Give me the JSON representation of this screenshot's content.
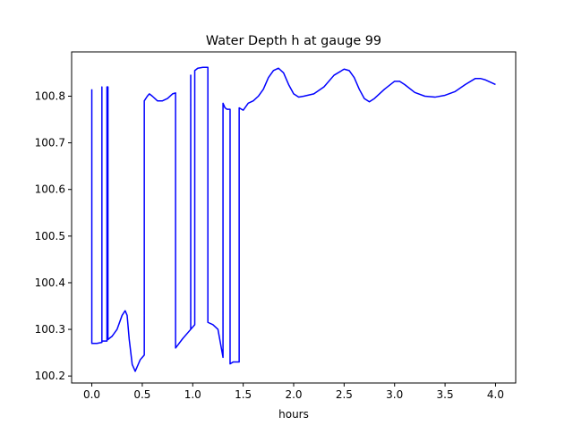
{
  "chart_data": {
    "type": "line",
    "title": "Water Depth h at gauge 99",
    "xlabel": "hours",
    "ylabel": "",
    "xlim": [
      -0.2,
      4.2
    ],
    "ylim": [
      100.185,
      100.895
    ],
    "xticks": [
      0.0,
      0.5,
      1.0,
      1.5,
      2.0,
      2.5,
      3.0,
      3.5,
      4.0
    ],
    "xtick_labels": [
      "0.0",
      "0.5",
      "1.0",
      "1.5",
      "2.0",
      "2.5",
      "3.0",
      "3.5",
      "4.0"
    ],
    "yticks": [
      100.2,
      100.3,
      100.4,
      100.5,
      100.6,
      100.7,
      100.8
    ],
    "ytick_labels": [
      "100.2",
      "100.3",
      "100.4",
      "100.5",
      "100.6",
      "100.7",
      "100.8"
    ],
    "grid": false,
    "legend": "none",
    "series": [
      {
        "color": "#0000ff",
        "x": [
          0.0,
          0.0,
          0.05,
          0.1,
          0.1,
          0.1,
          0.15,
          0.15,
          0.16,
          0.16,
          0.17,
          0.2,
          0.25,
          0.3,
          0.33,
          0.35,
          0.37,
          0.4,
          0.43,
          0.45,
          0.48,
          0.5,
          0.52,
          0.52,
          0.55,
          0.57,
          0.6,
          0.65,
          0.7,
          0.75,
          0.8,
          0.83,
          0.83,
          0.9,
          0.98,
          0.98,
          0.98,
          1.0,
          1.02,
          1.02,
          1.05,
          1.1,
          1.15,
          1.15,
          1.2,
          1.25,
          1.3,
          1.3,
          1.32,
          1.34,
          1.37,
          1.37,
          1.4,
          1.45,
          1.46,
          1.46,
          1.5,
          1.55,
          1.6,
          1.65,
          1.7,
          1.75,
          1.8,
          1.85,
          1.9,
          1.95,
          2.0,
          2.05,
          2.1,
          2.2,
          2.3,
          2.4,
          2.5,
          2.55,
          2.6,
          2.65,
          2.7,
          2.75,
          2.8,
          2.9,
          3.0,
          3.05,
          3.1,
          3.2,
          3.3,
          3.4,
          3.5,
          3.6,
          3.7,
          3.8,
          3.85,
          3.9,
          4.0
        ],
        "y": [
          100.815,
          100.27,
          100.27,
          100.272,
          100.82,
          100.275,
          100.275,
          100.82,
          100.82,
          100.278,
          100.28,
          100.285,
          100.3,
          100.33,
          100.34,
          100.33,
          100.28,
          100.225,
          100.21,
          100.22,
          100.235,
          100.24,
          100.245,
          100.79,
          100.8,
          100.805,
          100.8,
          100.79,
          100.79,
          100.795,
          100.805,
          100.807,
          100.26,
          100.28,
          100.3,
          100.845,
          100.3,
          100.305,
          100.31,
          100.855,
          100.86,
          100.862,
          100.862,
          100.315,
          100.31,
          100.3,
          100.24,
          100.785,
          100.775,
          100.772,
          100.772,
          100.226,
          100.23,
          100.23,
          100.23,
          100.775,
          100.77,
          100.785,
          100.79,
          100.8,
          100.815,
          100.84,
          100.855,
          100.86,
          100.85,
          100.825,
          100.805,
          100.798,
          100.8,
          100.805,
          100.82,
          100.845,
          100.858,
          100.855,
          100.84,
          100.815,
          100.795,
          100.788,
          100.795,
          100.815,
          100.832,
          100.832,
          100.825,
          100.808,
          100.8,
          100.798,
          100.802,
          100.81,
          100.825,
          100.838,
          100.838,
          100.835,
          100.825
        ]
      }
    ]
  }
}
